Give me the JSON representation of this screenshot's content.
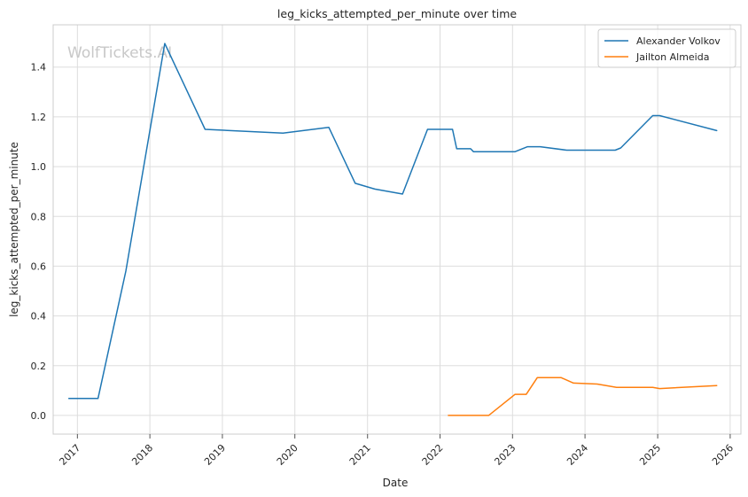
{
  "chart_data": {
    "type": "line",
    "title": "leg_kicks_attempted_per_minute over time",
    "xlabel": "Date",
    "ylabel": "leg_kicks_attempted_per_minute",
    "xlim": [
      "2016-09-01",
      "2026-02-24"
    ],
    "ylim": [
      -0.075,
      1.57
    ],
    "x_ticks": [
      "2017",
      "2018",
      "2019",
      "2020",
      "2021",
      "2022",
      "2023",
      "2024",
      "2025",
      "2026"
    ],
    "y_ticks": [
      "0.0",
      "0.2",
      "0.4",
      "0.6",
      "0.8",
      "1.0",
      "1.2",
      "1.4"
    ],
    "grid": true,
    "legend_position": "top-right",
    "watermark": "WolfTickets.AI",
    "series": [
      {
        "name": "Alexander Volkov",
        "color": "#1f77b4",
        "points": [
          {
            "x": "2016-11-19",
            "y": 0.068
          },
          {
            "x": "2017-04-15",
            "y": 0.068
          },
          {
            "x": "2017-09-02",
            "y": 0.58
          },
          {
            "x": "2018-03-17",
            "y": 1.495
          },
          {
            "x": "2018-10-06",
            "y": 1.15
          },
          {
            "x": "2019-11-02",
            "y": 1.135
          },
          {
            "x": "2020-06-20",
            "y": 1.158
          },
          {
            "x": "2020-10-31",
            "y": 0.933
          },
          {
            "x": "2021-02-06",
            "y": 0.91
          },
          {
            "x": "2021-06-26",
            "y": 0.89
          },
          {
            "x": "2021-10-30",
            "y": 1.15
          },
          {
            "x": "2022-03-05",
            "y": 1.15
          },
          {
            "x": "2022-03-26",
            "y": 1.072
          },
          {
            "x": "2022-06-04",
            "y": 1.072
          },
          {
            "x": "2022-06-18",
            "y": 1.06
          },
          {
            "x": "2023-01-14",
            "y": 1.06
          },
          {
            "x": "2023-03-18",
            "y": 1.08
          },
          {
            "x": "2023-05-20",
            "y": 1.08
          },
          {
            "x": "2023-09-30",
            "y": 1.066
          },
          {
            "x": "2024-06-01",
            "y": 1.066
          },
          {
            "x": "2024-06-29",
            "y": 1.075
          },
          {
            "x": "2024-12-07",
            "y": 1.205
          },
          {
            "x": "2025-01-11",
            "y": 1.205
          },
          {
            "x": "2025-10-25",
            "y": 1.145
          }
        ]
      },
      {
        "name": "Jailton Almeida",
        "color": "#ff7f0e",
        "points": [
          {
            "x": "2022-02-12",
            "y": 0.0
          },
          {
            "x": "2022-09-03",
            "y": 0.0
          },
          {
            "x": "2023-01-14",
            "y": 0.085
          },
          {
            "x": "2023-03-11",
            "y": 0.085
          },
          {
            "x": "2023-05-06",
            "y": 0.152
          },
          {
            "x": "2023-09-02",
            "y": 0.152
          },
          {
            "x": "2023-11-04",
            "y": 0.13
          },
          {
            "x": "2024-03-02",
            "y": 0.126
          },
          {
            "x": "2024-06-08",
            "y": 0.113
          },
          {
            "x": "2024-12-07",
            "y": 0.113
          },
          {
            "x": "2025-01-11",
            "y": 0.108
          },
          {
            "x": "2025-10-25",
            "y": 0.12
          }
        ]
      }
    ]
  }
}
